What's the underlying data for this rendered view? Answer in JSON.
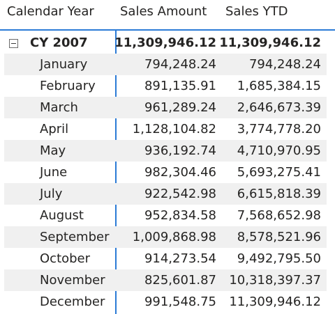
{
  "columns": {
    "year": "Calendar Year",
    "sales": "Sales Amount",
    "ytd": "Sales YTD"
  },
  "total": {
    "label": "CY 2007",
    "sales": "11,309,946.12",
    "ytd": "11,309,946.12",
    "expand_icon": "collapse-minus-icon"
  },
  "rows": [
    {
      "month": "January",
      "sales": "794,248.24",
      "ytd": "794,248.24"
    },
    {
      "month": "February",
      "sales": "891,135.91",
      "ytd": "1,685,384.15"
    },
    {
      "month": "March",
      "sales": "961,289.24",
      "ytd": "2,646,673.39"
    },
    {
      "month": "April",
      "sales": "1,128,104.82",
      "ytd": "3,774,778.20"
    },
    {
      "month": "May",
      "sales": "936,192.74",
      "ytd": "4,710,970.95"
    },
    {
      "month": "June",
      "sales": "982,304.46",
      "ytd": "5,693,275.41"
    },
    {
      "month": "July",
      "sales": "922,542.98",
      "ytd": "6,615,818.39"
    },
    {
      "month": "August",
      "sales": "952,834.58",
      "ytd": "7,568,652.98"
    },
    {
      "month": "September",
      "sales": "1,009,868.98",
      "ytd": "8,578,521.96"
    },
    {
      "month": "October",
      "sales": "914,273.54",
      "ytd": "9,492,795.50"
    },
    {
      "month": "November",
      "sales": "825,601.87",
      "ytd": "10,318,397.37"
    },
    {
      "month": "December",
      "sales": "991,548.75",
      "ytd": "11,309,946.12"
    }
  ],
  "colors": {
    "accent": "#2b7bd6",
    "row_shade": "#f0f0f0",
    "text": "#252423"
  }
}
